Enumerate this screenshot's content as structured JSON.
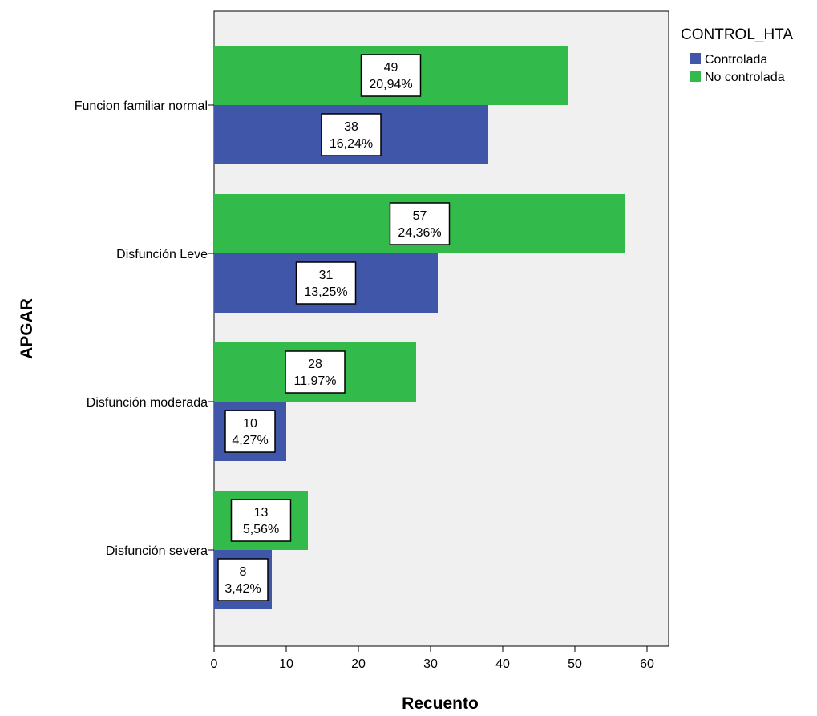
{
  "chart_data": {
    "type": "bar",
    "orientation": "horizontal",
    "xlabel": "Recuento",
    "ylabel": "APGAR",
    "xlim": [
      0,
      63
    ],
    "xticks": [
      0,
      10,
      20,
      30,
      40,
      50,
      60
    ],
    "categories": [
      "Funcion familiar normal",
      "Disfunción Leve",
      "Disfunción moderada",
      "Disfunción severa"
    ],
    "legend": {
      "title": "CONTROL_HTA",
      "placement": "top-right outside plot"
    },
    "series": [
      {
        "name": "Controlada",
        "color": "#3f56a9",
        "values": [
          38,
          31,
          10,
          8
        ],
        "percent_labels": [
          "16,24%",
          "13,25%",
          "4,27%",
          "3,42%"
        ]
      },
      {
        "name": "No controlada",
        "color": "#32bb4b",
        "values": [
          49,
          57,
          28,
          13
        ],
        "percent_labels": [
          "20,94%",
          "24,36%",
          "11,97%",
          "5,56%"
        ]
      }
    ],
    "background_color": "#f0f0f0",
    "grid": false
  }
}
